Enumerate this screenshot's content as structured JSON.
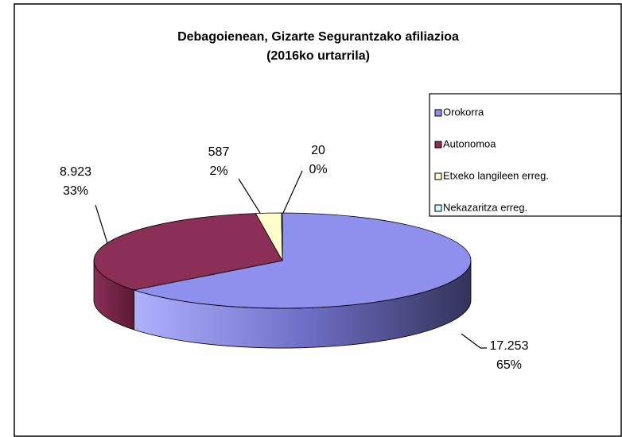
{
  "chart_data": {
    "type": "pie3d",
    "title": "Debagoienean, Gizarte Segurantzako afiliazioa",
    "subtitle": "(2016ko urtarrila)",
    "categories": [
      "Orokorra",
      "Autonomoa",
      "Etxeko langileen erreg.",
      "Nekazaritza erreg."
    ],
    "values": [
      17253,
      8923,
      587,
      20
    ],
    "value_labels": [
      "17.253",
      "8.923",
      "587",
      "20"
    ],
    "percent_labels": [
      "65%",
      "33%",
      "2%",
      "0%"
    ],
    "colors": [
      "#8f8fee",
      "#8b2f57",
      "#ffffcc",
      "#ccffff"
    ],
    "legend": "right"
  }
}
